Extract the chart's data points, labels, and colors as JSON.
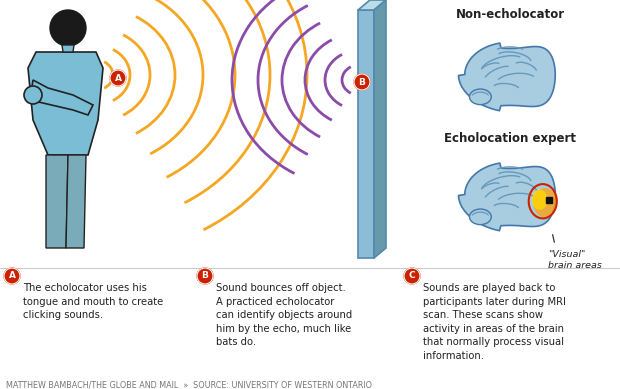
{
  "bg_color": "#ffffff",
  "title_non_echo": "Non-echolocator",
  "title_echo_expert": "Echolocation expert",
  "visual_brain_label": "\"Visual\"\nbrain areas",
  "text_A": "The echolocator uses his\ntongue and mouth to create\nclicking sounds.",
  "text_B": "Sound bounces off object.\nA practiced echolocator\ncan identify objects around\nhim by the echo, much like\nbats do.",
  "text_C": "Sounds are played back to\nparticipants later during MRI\nscan. These scans show\nactivity in areas of the brain\nthat normally process visual\ninformation.",
  "footer": "MATTHEW BAMBACH/THE GLOBE AND MAIL  »  SOURCE: UNIVERSITY OF WESTERN ONTARIO",
  "wave_color_orange": "#F5A623",
  "wave_color_purple": "#8B4BA8",
  "wall_color_front": "#8BBDD9",
  "wall_color_top": "#BBDDE8",
  "wall_color_side": "#6699AA",
  "wall_edge_color": "#5588AA",
  "person_shirt_color": "#7BBDD5",
  "person_pants_color": "#7AABB8",
  "person_skin_color": "#F5E6D0",
  "person_outline_color": "#222222",
  "person_hair_color": "#1a1a1a",
  "label_circle_color": "#CC2200",
  "label_text_color": "#ffffff",
  "brain_base_color": "#A8CCE0",
  "brain_gyri_color": "#6699BB",
  "brain_dark_color": "#4477AA",
  "brain_highlight_orange": "#F5A623",
  "brain_highlight_yellow": "#FFD700",
  "red_circle_color": "#CC2200",
  "black_dot_color": "#111111",
  "divider_color": "#cccccc",
  "footer_color": "#777777",
  "text_color": "#222222"
}
